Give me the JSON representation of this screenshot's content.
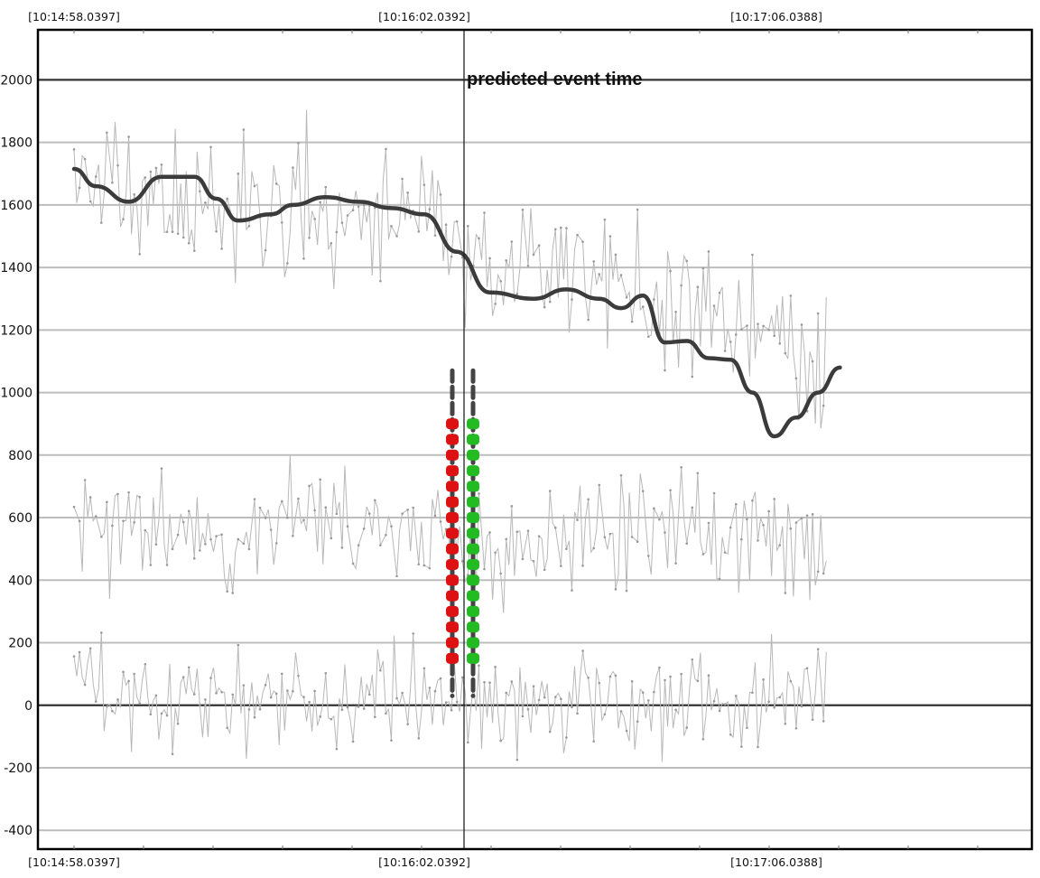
{
  "chart_data": {
    "type": "line",
    "annotation": "predicted event time",
    "event_time_label": "[10:16:02.0392]",
    "x_tick_labels": [
      "[10:14:58.0397]",
      "[10:16:02.0392]",
      "[10:17:06.0388]"
    ],
    "xlim": [
      "10:14:58.0397",
      "10:17:16.1"
    ],
    "ylim": [
      -460,
      2160
    ],
    "y_ticks": [
      -400,
      -200,
      0,
      200,
      400,
      600,
      800,
      1000,
      1200,
      1400,
      1600,
      1800,
      2000
    ],
    "y_tick_labels": [
      "-400",
      "-200",
      "0",
      "200",
      "400",
      "600",
      "800",
      "1000",
      "1200",
      "1400",
      "1600",
      "1800",
      "2000"
    ],
    "grid": true,
    "smoothed_trend": {
      "x_seconds": [
        0,
        4,
        10,
        16,
        22,
        26,
        30,
        36,
        40,
        46,
        52,
        58,
        64,
        70,
        76,
        84,
        90,
        96,
        100,
        104,
        108,
        112,
        116,
        120,
        124,
        128,
        132,
        136,
        140
      ],
      "values": [
        1715,
        1660,
        1610,
        1690,
        1690,
        1620,
        1550,
        1570,
        1600,
        1625,
        1610,
        1590,
        1570,
        1450,
        1320,
        1300,
        1330,
        1300,
        1270,
        1310,
        1160,
        1165,
        1110,
        1105,
        1000,
        860,
        920,
        1000,
        1080
      ]
    },
    "raw_series": [
      {
        "x_start_seconds": 0,
        "x_step_seconds": 0.5,
        "mean": [
          1700,
          1600,
          1600,
          1580,
          1560,
          1400,
          1380,
          1320,
          1200,
          1100
        ],
        "noise": 170,
        "seed": 11
      },
      {
        "x_start_seconds": 0,
        "x_step_seconds": 0.5,
        "mean": [
          560,
          560,
          560,
          600,
          560,
          500,
          560,
          560,
          540,
          520
        ],
        "noise": 140,
        "seed": 23
      },
      {
        "x_start_seconds": 0,
        "x_step_seconds": 0.5,
        "mean": [
          20,
          30,
          30,
          20,
          20,
          20,
          20,
          20,
          0,
          20
        ],
        "noise": 130,
        "seed": 37
      }
    ],
    "event_markers": [
      {
        "x_seconds": 61.5,
        "color": "#dd1111",
        "values": [
          150,
          200,
          250,
          300,
          350,
          400,
          450,
          500,
          550,
          600,
          650,
          700,
          750,
          800,
          850,
          900
        ]
      },
      {
        "x_seconds": 62.6,
        "color": "#22bb22",
        "values": [
          150,
          200,
          250,
          300,
          350,
          400,
          450,
          500,
          550,
          600,
          650,
          700,
          750,
          800,
          850,
          900
        ]
      }
    ],
    "colors": {
      "smoothed": "#3b3b3b",
      "raw": "#b8b8b8",
      "grid": "#bdbdbd",
      "zero_line": "#333333",
      "event_line": "#222222",
      "marker_dash": "#444444"
    }
  }
}
